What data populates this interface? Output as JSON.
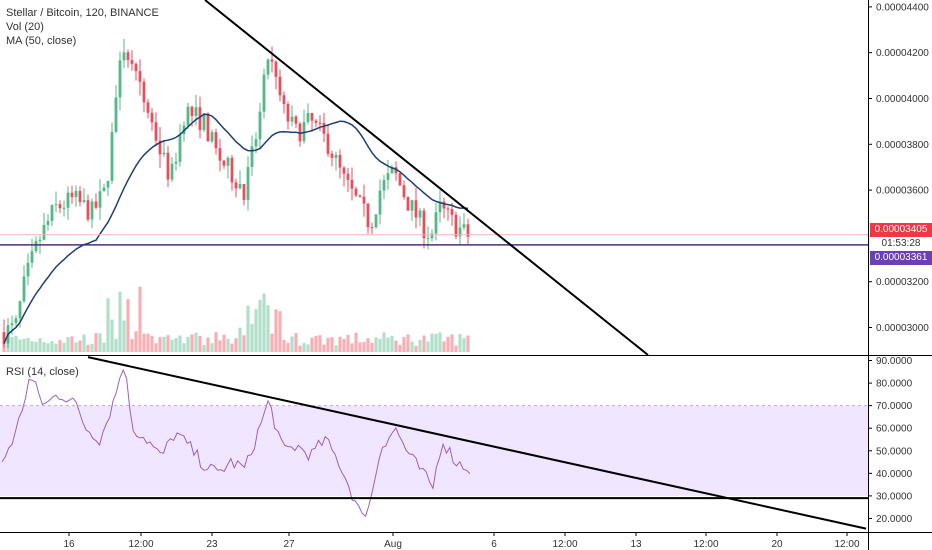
{
  "header": {
    "symbol_line": "Stellar / Bitcoin, 120, BINANCE",
    "vol_label": "Vol (20)",
    "ma_label": "MA (50, close)"
  },
  "rsi_header": {
    "label": "RSI (14, close)"
  },
  "price_tags": {
    "last_price": "0.00003405",
    "countdown": "01:53:28",
    "hline_price": "0.00003361"
  },
  "colors": {
    "up": "#53b987",
    "down": "#eb4d5c",
    "ma": "#1e3f73",
    "rsi": "#9c5fbf",
    "rsi_band": "#f1e6ff",
    "hline": "#4b2e83",
    "trend": "#000000",
    "tag_red": "#f23645",
    "tag_purple": "#6c3fb5"
  },
  "chart_data": [
    {
      "type": "candlestick",
      "title": "Stellar / Bitcoin, 120, BINANCE",
      "y_axis_ticks": [
        "0.00004400",
        "0.00004200",
        "0.00004000",
        "0.00003800",
        "0.00003600",
        "0.00003200",
        "0.00003000"
      ],
      "ylim": [
        2.88e-05,
        4.43e-05
      ],
      "x_axis_ticks": [
        "16",
        "12:00",
        "23",
        "27",
        "Aug",
        "6",
        "12:00",
        "13",
        "12:00",
        "20",
        "12:00"
      ],
      "ma_period": 50,
      "horizontal_line": 3.361e-05,
      "last_price": 3.405e-05,
      "trendline": {
        "from": [
          4.48e-05,
          0.0
        ],
        "to": [
          2.88e-05,
          1.0
        ]
      },
      "price_key_points": [
        {
          "t": 0.0,
          "v": 2.98e-05
        },
        {
          "t": 0.025,
          "v": 3e-05
        },
        {
          "t": 0.045,
          "v": 3.2e-05
        },
        {
          "t": 0.075,
          "v": 3.38e-05
        },
        {
          "t": 0.11,
          "v": 3.52e-05
        },
        {
          "t": 0.15,
          "v": 3.56e-05
        },
        {
          "t": 0.19,
          "v": 3.5e-05
        },
        {
          "t": 0.22,
          "v": 3.6e-05
        },
        {
          "t": 0.24,
          "v": 4e-05
        },
        {
          "t": 0.26,
          "v": 4.25e-05
        },
        {
          "t": 0.28,
          "v": 4.1e-05
        },
        {
          "t": 0.31,
          "v": 3.95e-05
        },
        {
          "t": 0.34,
          "v": 3.75e-05
        },
        {
          "t": 0.36,
          "v": 3.65e-05
        },
        {
          "t": 0.39,
          "v": 3.95e-05
        },
        {
          "t": 0.43,
          "v": 3.9e-05
        },
        {
          "t": 0.46,
          "v": 3.75e-05
        },
        {
          "t": 0.5,
          "v": 3.65e-05
        },
        {
          "t": 0.52,
          "v": 3.6e-05
        },
        {
          "t": 0.55,
          "v": 3.9e-05
        },
        {
          "t": 0.57,
          "v": 4.2e-05
        },
        {
          "t": 0.6,
          "v": 3.95e-05
        },
        {
          "t": 0.63,
          "v": 3.85e-05
        },
        {
          "t": 0.66,
          "v": 3.9e-05
        },
        {
          "t": 0.7,
          "v": 3.8e-05
        },
        {
          "t": 0.73,
          "v": 3.65e-05
        },
        {
          "t": 0.76,
          "v": 3.55e-05
        },
        {
          "t": 0.79,
          "v": 3.45e-05
        },
        {
          "t": 0.81,
          "v": 3.6e-05
        },
        {
          "t": 0.84,
          "v": 3.68e-05
        },
        {
          "t": 0.87,
          "v": 3.55e-05
        },
        {
          "t": 0.9,
          "v": 3.45e-05
        },
        {
          "t": 0.92,
          "v": 3.4e-05
        },
        {
          "t": 0.94,
          "v": 3.52e-05
        },
        {
          "t": 0.97,
          "v": 3.45e-05
        },
        {
          "t": 1.0,
          "v": 3.4e-05
        }
      ]
    },
    {
      "type": "line",
      "title": "RSI (14, close)",
      "y_axis_ticks": [
        "90.0000",
        "80.0000",
        "70.0000",
        "60.0000",
        "50.0000",
        "40.0000",
        "30.0000",
        "20.0000"
      ],
      "ylim": [
        14,
        92
      ],
      "band": [
        30,
        70
      ],
      "horizontal_line": 29,
      "trendline": {
        "from": [
          91.5,
          0.0
        ],
        "to": [
          15.5,
          1.0
        ]
      },
      "rsi_key_points": [
        {
          "t": 0.0,
          "v": 45
        },
        {
          "t": 0.03,
          "v": 58
        },
        {
          "t": 0.06,
          "v": 83
        },
        {
          "t": 0.09,
          "v": 70
        },
        {
          "t": 0.12,
          "v": 75
        },
        {
          "t": 0.15,
          "v": 73
        },
        {
          "t": 0.18,
          "v": 60
        },
        {
          "t": 0.21,
          "v": 55
        },
        {
          "t": 0.24,
          "v": 73
        },
        {
          "t": 0.26,
          "v": 89
        },
        {
          "t": 0.28,
          "v": 60
        },
        {
          "t": 0.31,
          "v": 55
        },
        {
          "t": 0.34,
          "v": 47
        },
        {
          "t": 0.37,
          "v": 58
        },
        {
          "t": 0.4,
          "v": 52
        },
        {
          "t": 0.43,
          "v": 44
        },
        {
          "t": 0.46,
          "v": 40
        },
        {
          "t": 0.49,
          "v": 45
        },
        {
          "t": 0.52,
          "v": 42
        },
        {
          "t": 0.55,
          "v": 60
        },
        {
          "t": 0.57,
          "v": 72
        },
        {
          "t": 0.6,
          "v": 50
        },
        {
          "t": 0.63,
          "v": 52
        },
        {
          "t": 0.66,
          "v": 48
        },
        {
          "t": 0.69,
          "v": 55
        },
        {
          "t": 0.72,
          "v": 45
        },
        {
          "t": 0.75,
          "v": 30
        },
        {
          "t": 0.77,
          "v": 20
        },
        {
          "t": 0.79,
          "v": 30
        },
        {
          "t": 0.81,
          "v": 52
        },
        {
          "t": 0.84,
          "v": 60
        },
        {
          "t": 0.87,
          "v": 48
        },
        {
          "t": 0.9,
          "v": 40
        },
        {
          "t": 0.92,
          "v": 33
        },
        {
          "t": 0.94,
          "v": 55
        },
        {
          "t": 0.97,
          "v": 45
        },
        {
          "t": 1.0,
          "v": 42
        }
      ]
    }
  ]
}
